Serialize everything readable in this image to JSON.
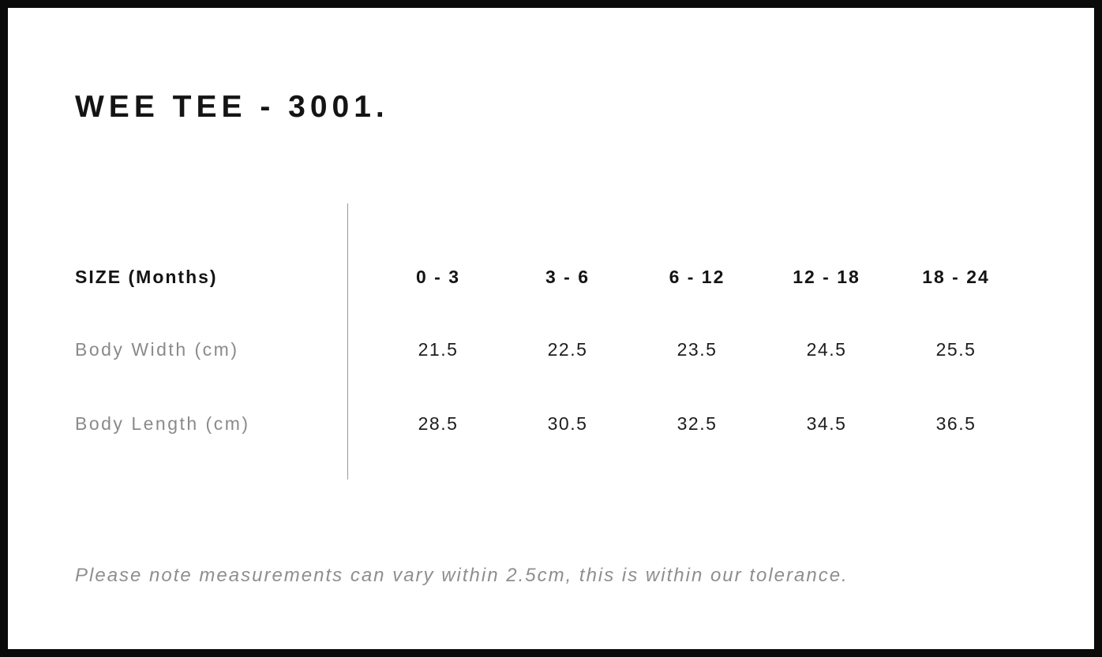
{
  "page": {
    "title": "WEE TEE - 3001."
  },
  "table": {
    "size_header": "SIZE (Months)",
    "columns": [
      "0 - 3",
      "3 - 6",
      "6 - 12",
      "12 - 18",
      "18 - 24"
    ],
    "rows": [
      {
        "label": "Body Width (cm)",
        "values": [
          "21.5",
          "22.5",
          "23.5",
          "24.5",
          "25.5"
        ]
      },
      {
        "label": "Body Length (cm)",
        "values": [
          "28.5",
          "30.5",
          "32.5",
          "34.5",
          "36.5"
        ]
      }
    ]
  },
  "note": "Please note measurements can vary within 2.5cm, this is within our tolerance.",
  "colors": {
    "text_primary": "#141414",
    "text_values": "#1d1d1d",
    "text_secondary": "#8a8a8a",
    "divider": "#9a9a9a",
    "frame_border": "#0a0a0a",
    "background": "#ffffff"
  }
}
